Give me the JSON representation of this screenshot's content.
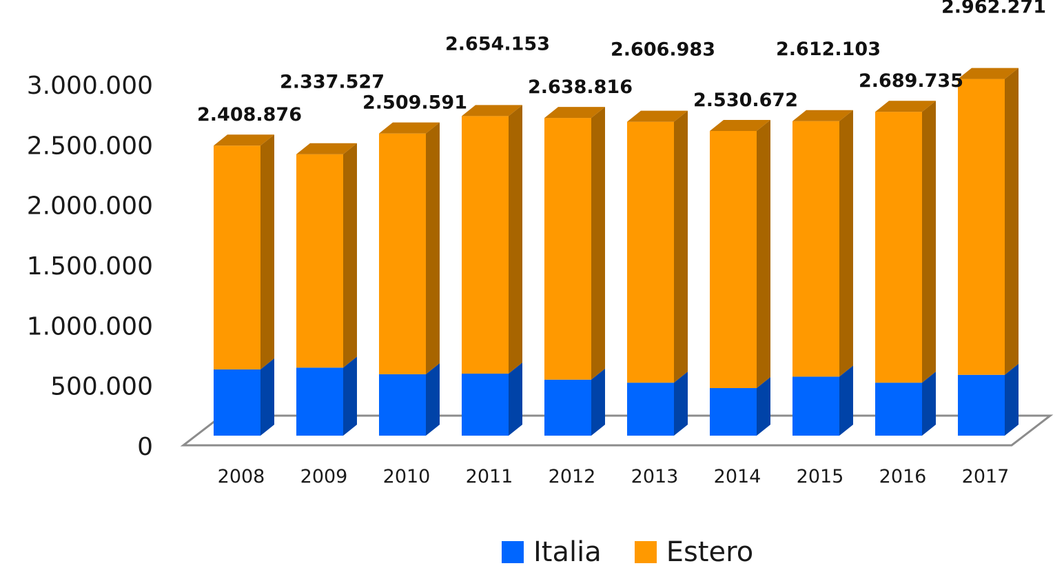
{
  "chart_data": {
    "type": "bar",
    "stacked": true,
    "three_d": true,
    "categories": [
      "2008",
      "2009",
      "2010",
      "2011",
      "2012",
      "2013",
      "2014",
      "2015",
      "2016",
      "2017"
    ],
    "series": [
      {
        "name": "Italia",
        "color": "#0066ff",
        "values": [
          550000,
          565000,
          510000,
          515000,
          465000,
          440000,
          395000,
          490000,
          440000,
          505000
        ]
      },
      {
        "name": "Estero",
        "color": "#ff9900",
        "values": [
          1858876,
          1772527,
          1999591,
          2139153,
          2173816,
          2166983,
          2135672,
          2122103,
          2249735,
          2457271
        ]
      }
    ],
    "totals": [
      2408876,
      2337527,
      2509591,
      2654153,
      2638816,
      2606983,
      2530672,
      2612103,
      2689735,
      2962271
    ],
    "total_labels": [
      "2.408.876",
      "2.337.527",
      "2.509.591",
      "2.654.153",
      "2.638.816",
      "2.606.983",
      "2.530.672",
      "2.612.103",
      "2.689.735",
      "2.962.271"
    ],
    "yticks": [
      0,
      500000,
      1000000,
      1500000,
      2000000,
      2500000,
      3000000
    ],
    "ytick_labels": [
      "0",
      "500.000",
      "1.000.000",
      "1.500.000",
      "2.000.000",
      "2.500.000",
      "3.000.000"
    ],
    "ylim": [
      0,
      3000000
    ],
    "grid": false,
    "legend_position": "bottom",
    "title": "",
    "xlabel": "",
    "ylabel": ""
  }
}
